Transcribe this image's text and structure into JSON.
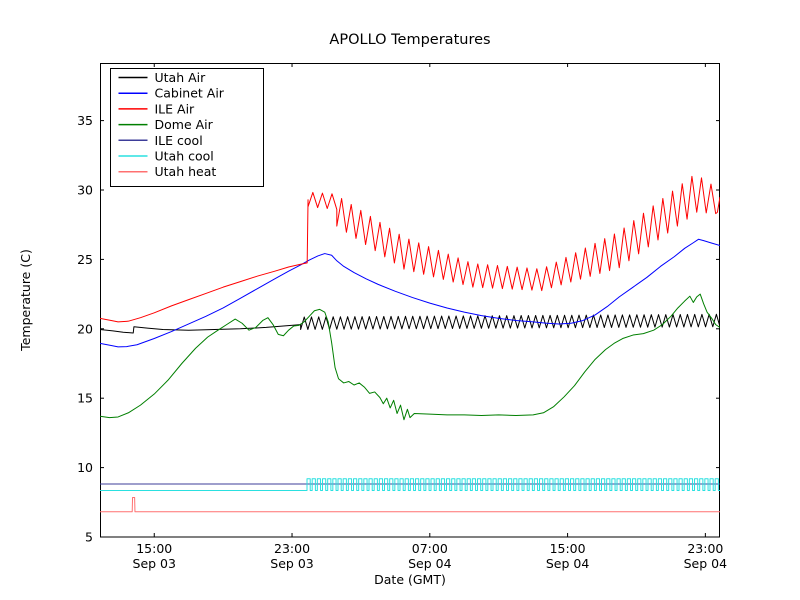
{
  "title": "APOLLO Temperatures",
  "axes": {
    "xlabel": "Date (GMT)",
    "ylabel": "Temperature (C)"
  },
  "chart_data": {
    "type": "line",
    "title": "APOLLO Temperatures",
    "xlabel": "Date (GMT)",
    "ylabel": "Temperature (C)",
    "x_unit_note": "t = hours after Sep 03 12:00 GMT",
    "xlim": [
      -0.15,
      35.85
    ],
    "ylim": [
      5,
      39.15
    ],
    "grid": false,
    "y_ticks": [
      5,
      10,
      15,
      20,
      25,
      30,
      35
    ],
    "x_ticks": [
      {
        "t": 3,
        "time": "15:00",
        "date": "Sep 03"
      },
      {
        "t": 11,
        "time": "23:00",
        "date": "Sep 03"
      },
      {
        "t": 19,
        "time": "07:00",
        "date": "Sep 04"
      },
      {
        "t": 27,
        "time": "15:00",
        "date": "Sep 04"
      },
      {
        "t": 35,
        "time": "23:00",
        "date": "Sep 04"
      }
    ],
    "legend": {
      "position": "upper left"
    },
    "series": [
      {
        "name": "Utah Air",
        "color": "#000000",
        "segments": [
          {
            "type": "line",
            "points": [
              [
                -0.15,
                19.95
              ],
              [
                0.6,
                19.85
              ],
              [
                1.2,
                19.75
              ],
              [
                1.78,
                19.7
              ],
              [
                1.82,
                20.15
              ],
              [
                2.6,
                20.05
              ],
              [
                3.5,
                19.95
              ],
              [
                5,
                19.9
              ],
              [
                6.5,
                19.95
              ],
              [
                8,
                20.0
              ],
              [
                9.5,
                20.1
              ],
              [
                10.5,
                20.2
              ],
              [
                11.5,
                20.3
              ]
            ]
          },
          {
            "type": "zigzag",
            "t0": 11.5,
            "t1": 35.85,
            "top": [
              20.85,
              21.05
            ],
            "bot": [
              19.95,
              20.15
            ],
            "period": 0.42
          }
        ]
      },
      {
        "name": "Cabinet Air",
        "color": "#0000ff",
        "segments": [
          {
            "type": "line",
            "points": [
              [
                -0.15,
                18.95
              ],
              [
                0.5,
                18.8
              ],
              [
                0.9,
                18.7
              ],
              [
                1.4,
                18.72
              ],
              [
                2,
                18.85
              ],
              [
                3,
                19.3
              ],
              [
                4,
                19.8
              ],
              [
                5,
                20.35
              ],
              [
                6,
                20.9
              ],
              [
                7,
                21.5
              ],
              [
                8,
                22.2
              ],
              [
                9,
                22.9
              ],
              [
                10,
                23.6
              ],
              [
                10.8,
                24.15
              ],
              [
                11.5,
                24.6
              ],
              [
                12,
                24.95
              ],
              [
                12.5,
                25.25
              ],
              [
                12.9,
                25.42
              ],
              [
                13.3,
                25.3
              ],
              [
                13.6,
                24.9
              ],
              [
                14,
                24.5
              ],
              [
                14.6,
                24.05
              ],
              [
                15.3,
                23.6
              ],
              [
                16,
                23.2
              ],
              [
                17,
                22.7
              ],
              [
                18,
                22.25
              ],
              [
                19,
                21.85
              ],
              [
                20,
                21.5
              ],
              [
                21,
                21.2
              ],
              [
                22,
                20.95
              ],
              [
                23,
                20.75
              ],
              [
                24,
                20.6
              ],
              [
                25,
                20.5
              ],
              [
                25.8,
                20.4
              ],
              [
                26.5,
                20.35
              ],
              [
                27.2,
                20.4
              ],
              [
                27.9,
                20.6
              ],
              [
                28.6,
                21.0
              ],
              [
                29.3,
                21.6
              ],
              [
                30,
                22.3
              ],
              [
                30.8,
                23.0
              ],
              [
                31.6,
                23.7
              ],
              [
                32.4,
                24.5
              ],
              [
                33.2,
                25.2
              ],
              [
                33.8,
                25.8
              ],
              [
                34.3,
                26.2
              ],
              [
                34.6,
                26.45
              ],
              [
                34.9,
                26.35
              ],
              [
                35.3,
                26.2
              ],
              [
                35.85,
                26.0
              ]
            ]
          }
        ]
      },
      {
        "name": "ILE Air",
        "color": "#ff0000",
        "segments": [
          {
            "type": "line",
            "points": [
              [
                -0.15,
                20.75
              ],
              [
                0.5,
                20.6
              ],
              [
                0.9,
                20.5
              ],
              [
                1.5,
                20.55
              ],
              [
                2.2,
                20.8
              ],
              [
                3,
                21.15
              ],
              [
                4,
                21.65
              ],
              [
                5,
                22.1
              ],
              [
                6,
                22.55
              ],
              [
                7,
                23.0
              ],
              [
                8,
                23.4
              ],
              [
                9,
                23.8
              ],
              [
                10,
                24.15
              ],
              [
                10.8,
                24.45
              ],
              [
                11.5,
                24.65
              ],
              [
                11.88,
                24.75
              ],
              [
                11.93,
                29.3
              ]
            ]
          },
          {
            "type": "zigzag",
            "t0": 11.93,
            "t1": 13.6,
            "top": [
              29.85,
              29.7
            ],
            "bot": [
              28.8,
              28.6
            ],
            "period": 0.55
          },
          {
            "type": "zigzag",
            "t0": 13.6,
            "t1": 17.5,
            "top": [
              29.6,
              26.6
            ],
            "bot": [
              27.4,
              24.3
            ],
            "period": 0.57
          },
          {
            "type": "zigzag",
            "t0": 17.5,
            "t1": 21.5,
            "top": [
              26.6,
              24.7
            ],
            "bot": [
              24.3,
              23.0
            ],
            "period": 0.57
          },
          {
            "type": "zigzag",
            "t0": 21.5,
            "t1": 25.5,
            "top": [
              24.7,
              24.3
            ],
            "bot": [
              23.0,
              22.75
            ],
            "period": 0.57
          },
          {
            "type": "zigzag",
            "t0": 25.5,
            "t1": 30.0,
            "top": [
              24.3,
              27.0
            ],
            "bot": [
              22.75,
              24.4
            ],
            "period": 0.57
          },
          {
            "type": "zigzag",
            "t0": 30.0,
            "t1": 34.5,
            "top": [
              27.0,
              31.25
            ],
            "bot": [
              24.4,
              28.4
            ],
            "period": 0.57
          },
          {
            "type": "zigzag",
            "t0": 34.5,
            "t1": 35.6,
            "top": [
              31.1,
              30.2
            ],
            "bot": [
              28.4,
              28.3
            ],
            "period": 0.57
          },
          {
            "type": "line",
            "points": [
              [
                35.7,
                28.4
              ],
              [
                35.85,
                29.5
              ]
            ]
          }
        ]
      },
      {
        "name": "Dome Air",
        "color": "#007f00",
        "segments": [
          {
            "type": "line",
            "points": [
              [
                -0.15,
                13.7
              ],
              [
                0.4,
                13.6
              ],
              [
                0.9,
                13.65
              ],
              [
                1.5,
                13.95
              ],
              [
                2.2,
                14.5
              ],
              [
                3,
                15.3
              ],
              [
                3.8,
                16.3
              ],
              [
                4.6,
                17.5
              ],
              [
                5.4,
                18.6
              ],
              [
                6.1,
                19.4
              ],
              [
                6.7,
                19.9
              ],
              [
                7.2,
                20.3
              ],
              [
                7.7,
                20.7
              ],
              [
                8.1,
                20.4
              ],
              [
                8.5,
                19.9
              ],
              [
                8.9,
                20.1
              ],
              [
                9.3,
                20.6
              ],
              [
                9.6,
                20.8
              ],
              [
                9.9,
                20.3
              ],
              [
                10.2,
                19.6
              ],
              [
                10.5,
                19.5
              ],
              [
                10.8,
                19.9
              ],
              [
                11.1,
                20.2
              ],
              [
                11.4,
                20.25
              ],
              [
                11.7,
                20.5
              ],
              [
                12.0,
                20.9
              ],
              [
                12.3,
                21.3
              ],
              [
                12.6,
                21.4
              ],
              [
                12.9,
                21.2
              ],
              [
                13.1,
                20.5
              ],
              [
                13.3,
                19.0
              ],
              [
                13.5,
                17.2
              ],
              [
                13.7,
                16.4
              ],
              [
                14,
                16.1
              ],
              [
                14.3,
                16.2
              ],
              [
                14.6,
                15.95
              ],
              [
                14.9,
                16.1
              ],
              [
                15.2,
                15.8
              ],
              [
                15.5,
                15.35
              ],
              [
                15.8,
                15.45
              ],
              [
                16.1,
                15.05
              ],
              [
                16.3,
                14.6
              ],
              [
                16.5,
                15.0
              ],
              [
                16.7,
                14.3
              ],
              [
                16.9,
                14.85
              ],
              [
                17.1,
                13.9
              ],
              [
                17.3,
                14.5
              ],
              [
                17.5,
                13.45
              ],
              [
                17.7,
                14.2
              ],
              [
                17.85,
                13.6
              ],
              [
                18.1,
                13.9
              ],
              [
                19,
                13.85
              ],
              [
                20,
                13.8
              ],
              [
                21,
                13.8
              ],
              [
                22,
                13.75
              ],
              [
                23,
                13.8
              ],
              [
                24,
                13.75
              ],
              [
                25,
                13.8
              ],
              [
                25.6,
                13.95
              ],
              [
                26.2,
                14.4
              ],
              [
                26.8,
                15.1
              ],
              [
                27.4,
                15.9
              ],
              [
                28,
                16.9
              ],
              [
                28.6,
                17.8
              ],
              [
                29.2,
                18.5
              ],
              [
                29.7,
                18.95
              ],
              [
                30.2,
                19.3
              ],
              [
                30.8,
                19.55
              ],
              [
                31.4,
                19.65
              ],
              [
                32,
                19.9
              ],
              [
                32.5,
                20.3
              ],
              [
                33,
                20.9
              ],
              [
                33.4,
                21.5
              ],
              [
                33.8,
                22.0
              ],
              [
                34.1,
                22.35
              ],
              [
                34.3,
                21.9
              ],
              [
                34.5,
                22.3
              ],
              [
                34.7,
                22.5
              ],
              [
                34.9,
                21.8
              ],
              [
                35.1,
                21.2
              ],
              [
                35.4,
                20.7
              ],
              [
                35.6,
                20.3
              ],
              [
                35.85,
                20.1
              ]
            ]
          }
        ]
      },
      {
        "name": "ILE cool",
        "color": "#3d3d99",
        "segments": [
          {
            "type": "line",
            "points": [
              [
                -0.15,
                8.82
              ],
              [
                35.85,
                8.82
              ]
            ]
          }
        ]
      },
      {
        "name": "Utah cool",
        "color": "#2ae0e0",
        "segments": [
          {
            "type": "line",
            "points": [
              [
                -0.15,
                8.35
              ],
              [
                11.87,
                8.35
              ]
            ]
          },
          {
            "type": "square",
            "t0": 11.87,
            "t1": 35.85,
            "lo": 8.35,
            "hi": 9.2,
            "period": 0.3,
            "duty": 0.62
          }
        ]
      },
      {
        "name": "Utah heat",
        "color": "#ff7070",
        "segments": [
          {
            "type": "line",
            "points": [
              [
                -0.15,
                6.82
              ],
              [
                1.72,
                6.82
              ],
              [
                1.74,
                7.85
              ],
              [
                1.86,
                7.85
              ],
              [
                1.88,
                6.82
              ],
              [
                35.85,
                6.82
              ]
            ]
          }
        ]
      }
    ]
  }
}
